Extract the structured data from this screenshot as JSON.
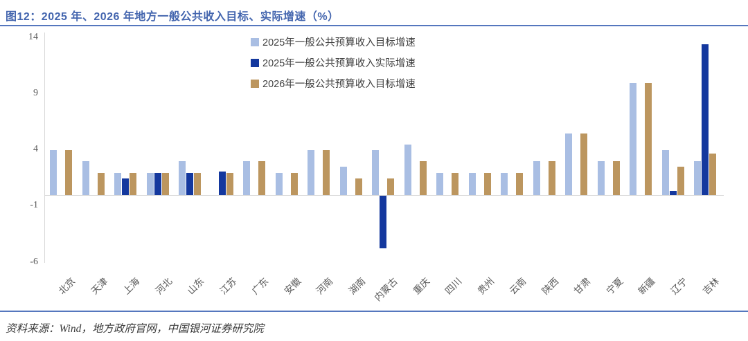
{
  "header": {
    "title": "图12：2025 年、2026 年地方一般公共收入目标、实际增速（%）"
  },
  "footer": {
    "source": "资料来源：Wind，地方政府官网，中国银河证券研究院"
  },
  "colors": {
    "title_blue": "#4365AE",
    "rule_blue": "#5577BE",
    "series_2025_target": "#A9BEE3",
    "series_2025_actual": "#14389E",
    "series_2026_target": "#BC965F",
    "axis_text": "#595959",
    "axis_line": "#D9D9D9"
  },
  "chart_data": {
    "type": "bar",
    "title": "2025年、2026年地方一般公共收入目标、实际增速（%）",
    "xlabel": "",
    "ylabel": "",
    "ylim": [
      -6,
      14
    ],
    "yticks": [
      14,
      9,
      4,
      -1,
      -6
    ],
    "grid": false,
    "legend_position": "top-center",
    "categories": [
      "北京",
      "天津",
      "上海",
      "河北",
      "山东",
      "江苏",
      "广东",
      "安徽",
      "河南",
      "湖南",
      "内蒙古",
      "重庆",
      "四川",
      "贵州",
      "云南",
      "陕西",
      "甘肃",
      "宁夏",
      "新疆",
      "辽宁",
      "吉林"
    ],
    "series": [
      {
        "name": "2025年一般公共预算收入目标增速",
        "color_key": "series_2025_target",
        "values": [
          4,
          3,
          2,
          2,
          3,
          null,
          3,
          2,
          4,
          2.5,
          4,
          4.5,
          2,
          2,
          2,
          3,
          5.5,
          3,
          10,
          4,
          3
        ]
      },
      {
        "name": "2025年一般公共预算收入实际增速",
        "color_key": "series_2025_actual",
        "values": [
          null,
          null,
          1.5,
          2,
          2,
          2.1,
          null,
          null,
          null,
          null,
          -4.7,
          null,
          null,
          null,
          null,
          null,
          null,
          null,
          null,
          0.4,
          13.4
        ]
      },
      {
        "name": "2026年一般公共预算收入目标增速",
        "color_key": "series_2026_target",
        "values": [
          4,
          2,
          2,
          2,
          2,
          2,
          3,
          2,
          4,
          1.5,
          1.5,
          3,
          2,
          2,
          2,
          3,
          5.5,
          3,
          10,
          2.5,
          3.7
        ]
      }
    ]
  }
}
